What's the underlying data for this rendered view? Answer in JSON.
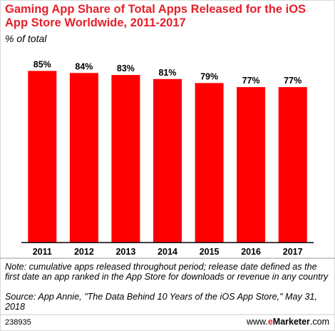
{
  "chart_data": {
    "type": "bar",
    "title": "Gaming App Share of Total Apps Released for the iOS App Store Worldwide, 2011-2017",
    "subtitle": "% of total",
    "categories": [
      "2011",
      "2012",
      "2013",
      "2014",
      "2015",
      "2016",
      "2017"
    ],
    "values": [
      85,
      84,
      83,
      81,
      79,
      77,
      77
    ],
    "value_labels": [
      "85%",
      "84%",
      "83%",
      "81%",
      "79%",
      "77%",
      "77%"
    ],
    "ylim": [
      0,
      100
    ],
    "grid": false,
    "bar_color": "#ff0000"
  },
  "notes": {
    "note": "Note: cumulative apps released throughout period; release date defined as the first date an app ranked in the App Store for downloads or revenue in any country",
    "source": "Source: App Annie, \"The Data Behind 10 Years of the iOS App Store,\" May 31, 2018"
  },
  "footer": {
    "chart_id": "238935",
    "brand_prefix": "www.",
    "brand_e": "e",
    "brand_rest": "Marketer",
    "brand_suffix": ".com"
  },
  "colors": {
    "title": "#e4202a",
    "bar": "#ff0000",
    "axis": "#000000"
  }
}
